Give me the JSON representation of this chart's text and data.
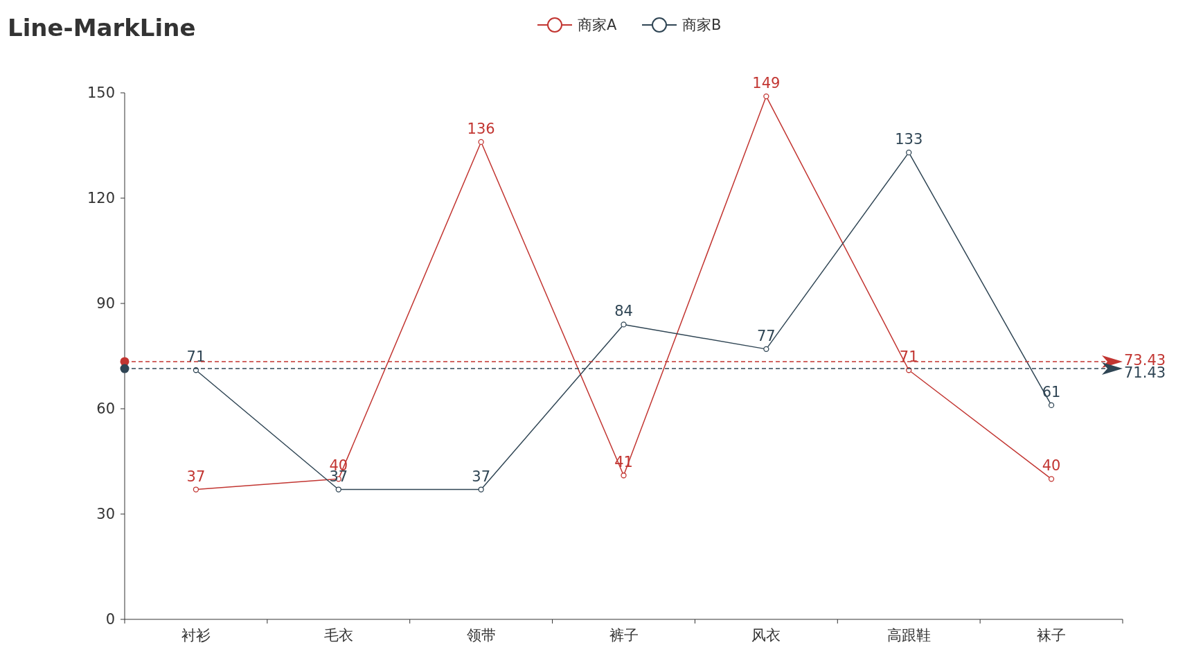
{
  "chart_data": {
    "type": "line",
    "title": "Line-MarkLine",
    "categories": [
      "衬衫",
      "毛衣",
      "领带",
      "裤子",
      "风衣",
      "高跟鞋",
      "袜子"
    ],
    "series": [
      {
        "name": "商家A",
        "color": "#c23531",
        "values": [
          37,
          40,
          136,
          41,
          149,
          71,
          40
        ]
      },
      {
        "name": "商家B",
        "color": "#2f4554",
        "values": [
          71,
          37,
          37,
          84,
          77,
          133,
          61
        ]
      }
    ],
    "ylim": [
      0,
      150
    ],
    "yticks": [
      0,
      30,
      60,
      90,
      120,
      150
    ],
    "grid": false,
    "legend": "top",
    "marker": "circle",
    "line_style": "solid",
    "data_labels": true,
    "ref_lines": [
      {
        "axis": "y",
        "value": 73.43,
        "label": "73.43",
        "color": "#c23531",
        "line_style": "dashed"
      },
      {
        "axis": "y",
        "value": 71.43,
        "label": "71.43",
        "color": "#2f4554",
        "line_style": "dashed"
      }
    ]
  }
}
